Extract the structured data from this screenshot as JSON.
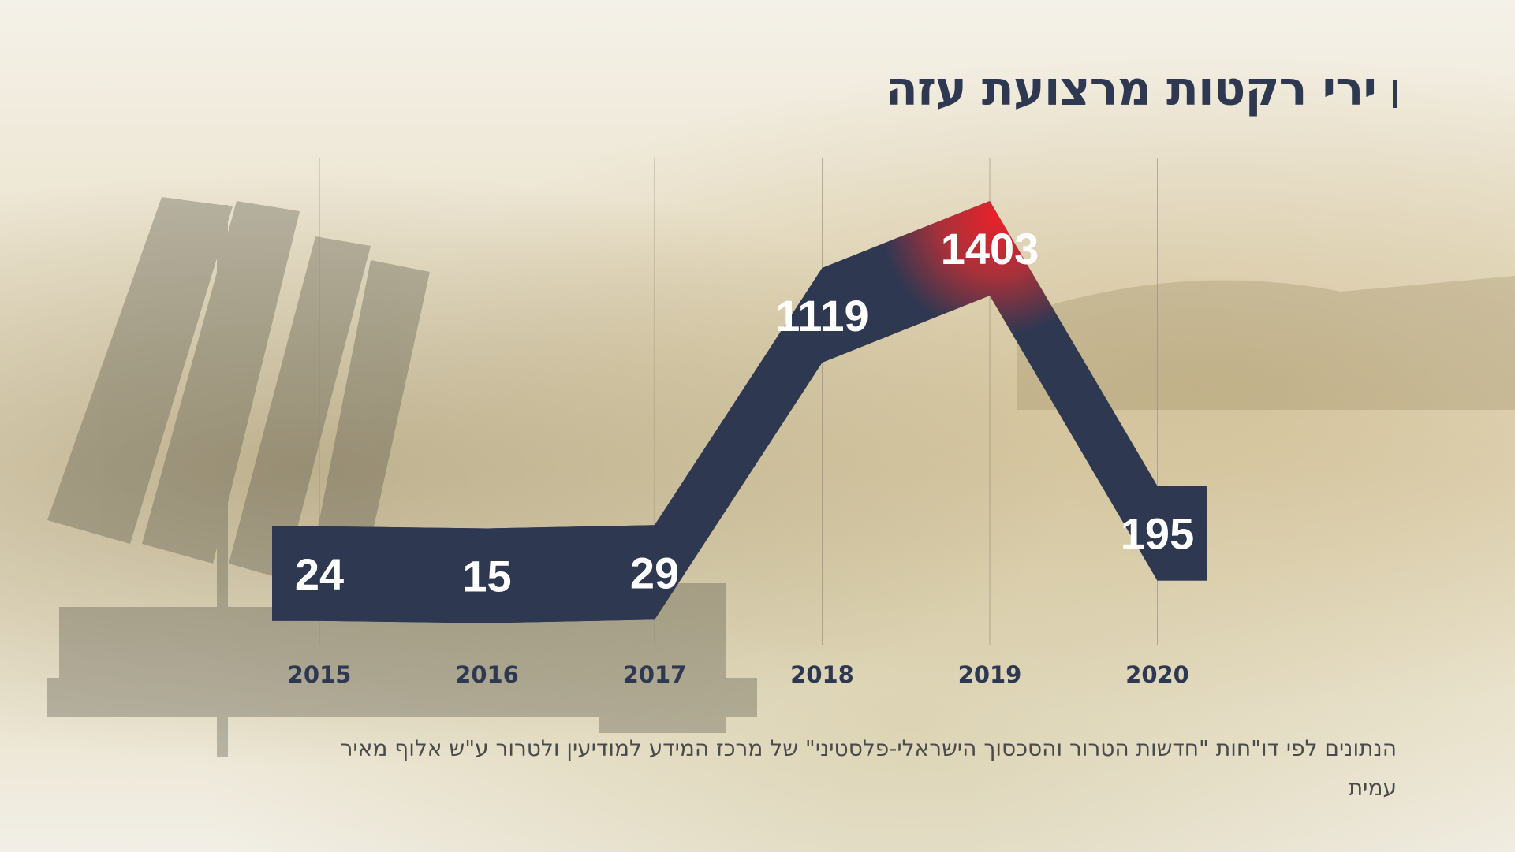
{
  "title": "ירי רקטות מרצועת עזה",
  "source": "הנתונים לפי דו\"חות \"חדשות הטרור והסכסוך הישראלי-פלסטיני\" של מרכז המידע למודיעין ולטרור ע\"ש אלוף מאיר עמית",
  "colors": {
    "navy": "#2f3851",
    "highlight": "#e8222a",
    "grid": "#8a8a8a"
  },
  "chart_data": {
    "type": "line",
    "title": "ירי רקטות מרצועת עזה",
    "categories": [
      "2015",
      "2016",
      "2017",
      "2018",
      "2019",
      "2020"
    ],
    "values": [
      24,
      15,
      29,
      1119,
      1403,
      195
    ],
    "highlight": "2019",
    "ylim": [
      0,
      1500
    ],
    "grid": "vertical",
    "legend": "none"
  }
}
